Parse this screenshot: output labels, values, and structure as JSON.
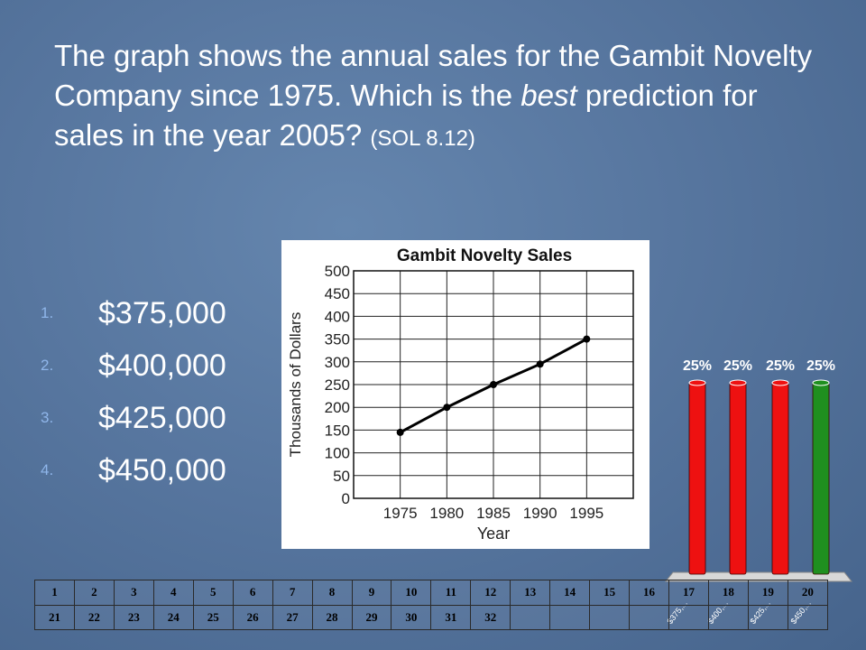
{
  "question": {
    "part1": "The graph shows the annual sales for the Gambit Novelty Company since 1975. Which is the ",
    "emphasis": "best",
    "part2": " prediction for sales in the year 2005?",
    "sol": "(SOL 8.12)"
  },
  "answers": [
    {
      "number": "1.",
      "label": "$375,000"
    },
    {
      "number": "2.",
      "label": "$400,000"
    },
    {
      "number": "3.",
      "label": "$425,000"
    },
    {
      "number": "4.",
      "label": "$450,000"
    }
  ],
  "colors": {
    "answer_number": "#8fb6ea",
    "bar_red": "#ee1111",
    "bar_green": "#1f8f1f"
  },
  "chart_data": [
    {
      "type": "line",
      "title": "Gambit Novelty Sales",
      "xlabel": "Year",
      "ylabel": "Thousands of Dollars",
      "x": [
        1975,
        1980,
        1985,
        1990,
        1995
      ],
      "series": [
        {
          "values": [
            145,
            200,
            250,
            295,
            350
          ]
        }
      ],
      "x_ticks": [
        "1975",
        "1980",
        "1985",
        "1990",
        "1995"
      ],
      "y_ticks": [
        0,
        50,
        100,
        150,
        200,
        250,
        300,
        350,
        400,
        450,
        500
      ],
      "xlim": [
        1970,
        2000
      ],
      "ylim": [
        0,
        500
      ],
      "grid": true
    },
    {
      "type": "bar",
      "categories": [
        "$375,...",
        "$400,...",
        "$425,...",
        "$450,..."
      ],
      "values": [
        25,
        25,
        25,
        25
      ],
      "data_labels": [
        "25%",
        "25%",
        "25%",
        "25%"
      ],
      "ylim": [
        0,
        25
      ],
      "bar_colors": [
        "#ee1111",
        "#ee1111",
        "#ee1111",
        "#1f8f1f"
      ]
    }
  ],
  "response_grid": {
    "rows": [
      [
        "1",
        "2",
        "3",
        "4",
        "5",
        "6",
        "7",
        "8",
        "9",
        "10",
        "11",
        "12",
        "13",
        "14",
        "15",
        "16",
        "17",
        "18",
        "19",
        "20"
      ],
      [
        "21",
        "22",
        "23",
        "24",
        "25",
        "26",
        "27",
        "28",
        "29",
        "30",
        "31",
        "32",
        "",
        "",
        "",
        "",
        "",
        "",
        "",
        ""
      ]
    ]
  }
}
